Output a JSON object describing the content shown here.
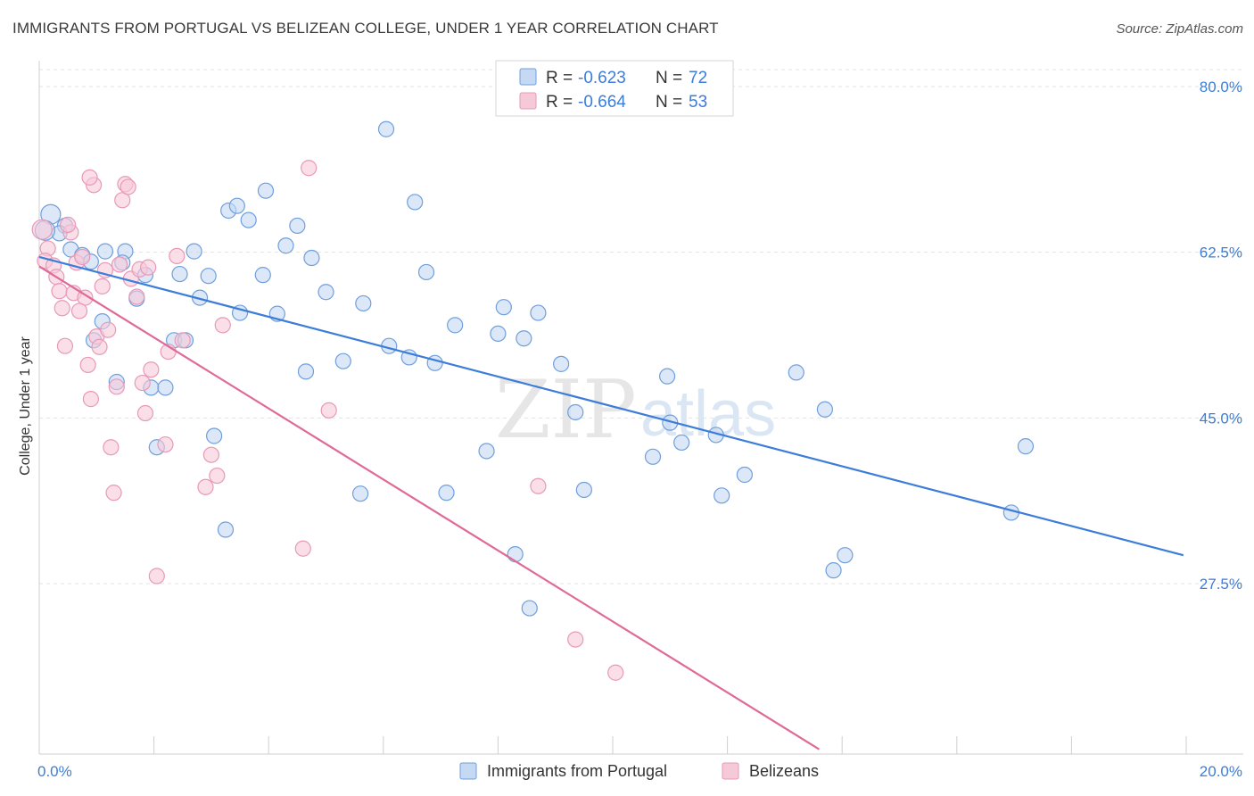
{
  "title": "IMMIGRANTS FROM PORTUGAL VS BELIZEAN COLLEGE, UNDER 1 YEAR CORRELATION CHART",
  "source": "Source: ZipAtlas.com",
  "watermark": {
    "zip": "ZIP",
    "atlas": "atlas"
  },
  "colors": {
    "blue": "#3b7dd8",
    "blue_fill": "#c5d9f3",
    "blue_stroke": "#6f9fdc",
    "pink": "#e06a97",
    "pink_fill": "#f6c9d9",
    "pink_stroke": "#e899b7",
    "grid": "#e3e3e3"
  },
  "legend": {
    "rows": [
      {
        "r_label": "R = ",
        "r_value": "-0.623",
        "n_label": "N = ",
        "n_value": "72",
        "series": "blue"
      },
      {
        "r_label": "R = ",
        "r_value": "-0.664",
        "n_label": "N = ",
        "n_value": "53",
        "series": "pink"
      }
    ]
  },
  "chart_data": {
    "type": "scatter",
    "title": "IMMIGRANTS FROM PORTUGAL VS BELIZEAN COLLEGE, UNDER 1 YEAR CORRELATION CHART",
    "xlabel": "",
    "ylabel": "College, Under 1 year",
    "xlim": [
      0,
      20
    ],
    "ylim": [
      10,
      82
    ],
    "x_tick_labels": [
      "0.0%",
      "20.0%"
    ],
    "y_ticks": [
      27.5,
      45.0,
      62.5,
      80.0
    ],
    "y_tick_labels": [
      "27.5%",
      "45.0%",
      "62.5%",
      "80.0%"
    ],
    "grid": true,
    "legend_position": "top-center",
    "series": [
      {
        "name": "Immigrants from Portugal",
        "color": "blue",
        "trend": {
          "x": [
            0.0,
            19.95
          ],
          "y": [
            62.0,
            30.5
          ]
        },
        "points": [
          {
            "x": 0.2,
            "y": 66.5
          },
          {
            "x": 0.45,
            "y": 65.3
          },
          {
            "x": 0.35,
            "y": 64.5
          },
          {
            "x": 0.55,
            "y": 62.8
          },
          {
            "x": 0.75,
            "y": 62.2
          },
          {
            "x": 0.9,
            "y": 61.5
          },
          {
            "x": 1.15,
            "y": 62.6
          },
          {
            "x": 1.5,
            "y": 62.6
          },
          {
            "x": 1.45,
            "y": 61.4
          },
          {
            "x": 1.85,
            "y": 60.1
          },
          {
            "x": 1.7,
            "y": 57.6
          },
          {
            "x": 1.1,
            "y": 55.2
          },
          {
            "x": 0.95,
            "y": 53.2
          },
          {
            "x": 1.35,
            "y": 48.8
          },
          {
            "x": 1.95,
            "y": 48.2
          },
          {
            "x": 2.2,
            "y": 48.2
          },
          {
            "x": 2.05,
            "y": 41.9
          },
          {
            "x": 2.35,
            "y": 53.2
          },
          {
            "x": 2.55,
            "y": 53.2
          },
          {
            "x": 2.45,
            "y": 60.2
          },
          {
            "x": 2.7,
            "y": 62.6
          },
          {
            "x": 2.8,
            "y": 57.7
          },
          {
            "x": 2.95,
            "y": 60.0
          },
          {
            "x": 3.05,
            "y": 43.1
          },
          {
            "x": 3.3,
            "y": 66.9
          },
          {
            "x": 3.45,
            "y": 67.4
          },
          {
            "x": 3.65,
            "y": 65.9
          },
          {
            "x": 3.5,
            "y": 56.1
          },
          {
            "x": 3.25,
            "y": 33.2
          },
          {
            "x": 3.9,
            "y": 60.1
          },
          {
            "x": 3.95,
            "y": 69.0
          },
          {
            "x": 4.15,
            "y": 56.0
          },
          {
            "x": 4.3,
            "y": 63.2
          },
          {
            "x": 4.5,
            "y": 65.3
          },
          {
            "x": 4.65,
            "y": 49.9
          },
          {
            "x": 4.75,
            "y": 61.9
          },
          {
            "x": 5.0,
            "y": 58.3
          },
          {
            "x": 5.3,
            "y": 51.0
          },
          {
            "x": 5.6,
            "y": 37.0
          },
          {
            "x": 5.65,
            "y": 57.1
          },
          {
            "x": 6.1,
            "y": 52.6
          },
          {
            "x": 6.05,
            "y": 75.5
          },
          {
            "x": 6.45,
            "y": 51.4
          },
          {
            "x": 6.55,
            "y": 67.8
          },
          {
            "x": 6.75,
            "y": 60.4
          },
          {
            "x": 6.9,
            "y": 50.8
          },
          {
            "x": 7.1,
            "y": 37.1
          },
          {
            "x": 7.25,
            "y": 54.8
          },
          {
            "x": 7.8,
            "y": 41.5
          },
          {
            "x": 8.0,
            "y": 53.9
          },
          {
            "x": 8.1,
            "y": 56.7
          },
          {
            "x": 8.3,
            "y": 30.6
          },
          {
            "x": 8.45,
            "y": 53.4
          },
          {
            "x": 8.55,
            "y": 24.9
          },
          {
            "x": 8.7,
            "y": 56.1
          },
          {
            "x": 9.1,
            "y": 50.7
          },
          {
            "x": 9.35,
            "y": 45.6
          },
          {
            "x": 9.5,
            "y": 37.4
          },
          {
            "x": 10.7,
            "y": 40.9
          },
          {
            "x": 10.95,
            "y": 49.4
          },
          {
            "x": 11.0,
            "y": 44.5
          },
          {
            "x": 11.2,
            "y": 42.4
          },
          {
            "x": 11.8,
            "y": 43.2
          },
          {
            "x": 11.9,
            "y": 36.8
          },
          {
            "x": 12.3,
            "y": 39.0
          },
          {
            "x": 13.2,
            "y": 49.8
          },
          {
            "x": 13.85,
            "y": 28.9
          },
          {
            "x": 14.05,
            "y": 30.5
          },
          {
            "x": 13.7,
            "y": 45.9
          },
          {
            "x": 16.95,
            "y": 35.0
          },
          {
            "x": 17.2,
            "y": 42.0
          },
          {
            "x": 0.1,
            "y": 64.8
          }
        ]
      },
      {
        "name": "Belizeans",
        "color": "pink",
        "trend": {
          "x": [
            0.0,
            13.6
          ],
          "y": [
            61.0,
            10.0
          ]
        },
        "points": [
          {
            "x": 0.05,
            "y": 64.9
          },
          {
            "x": 0.15,
            "y": 62.9
          },
          {
            "x": 0.1,
            "y": 61.6
          },
          {
            "x": 0.25,
            "y": 61.1
          },
          {
            "x": 0.3,
            "y": 59.9
          },
          {
            "x": 0.35,
            "y": 58.4
          },
          {
            "x": 0.4,
            "y": 56.6
          },
          {
            "x": 0.45,
            "y": 52.6
          },
          {
            "x": 0.55,
            "y": 64.6
          },
          {
            "x": 0.5,
            "y": 65.4
          },
          {
            "x": 0.6,
            "y": 58.2
          },
          {
            "x": 0.65,
            "y": 61.4
          },
          {
            "x": 0.75,
            "y": 62.0
          },
          {
            "x": 0.8,
            "y": 57.7
          },
          {
            "x": 0.7,
            "y": 56.3
          },
          {
            "x": 0.85,
            "y": 50.6
          },
          {
            "x": 0.9,
            "y": 47.0
          },
          {
            "x": 0.95,
            "y": 69.6
          },
          {
            "x": 0.88,
            "y": 70.4
          },
          {
            "x": 1.0,
            "y": 53.6
          },
          {
            "x": 1.05,
            "y": 52.5
          },
          {
            "x": 1.1,
            "y": 58.9
          },
          {
            "x": 1.15,
            "y": 60.6
          },
          {
            "x": 1.2,
            "y": 54.3
          },
          {
            "x": 1.25,
            "y": 41.9
          },
          {
            "x": 1.3,
            "y": 37.1
          },
          {
            "x": 1.35,
            "y": 48.3
          },
          {
            "x": 1.4,
            "y": 61.2
          },
          {
            "x": 1.45,
            "y": 68.0
          },
          {
            "x": 1.5,
            "y": 69.7
          },
          {
            "x": 1.55,
            "y": 69.4
          },
          {
            "x": 1.6,
            "y": 59.7
          },
          {
            "x": 1.7,
            "y": 57.8
          },
          {
            "x": 1.75,
            "y": 60.7
          },
          {
            "x": 1.8,
            "y": 48.7
          },
          {
            "x": 1.85,
            "y": 45.5
          },
          {
            "x": 1.9,
            "y": 60.9
          },
          {
            "x": 1.95,
            "y": 50.1
          },
          {
            "x": 2.05,
            "y": 28.3
          },
          {
            "x": 2.2,
            "y": 42.2
          },
          {
            "x": 2.25,
            "y": 52.0
          },
          {
            "x": 2.4,
            "y": 62.1
          },
          {
            "x": 2.5,
            "y": 53.2
          },
          {
            "x": 2.9,
            "y": 37.7
          },
          {
            "x": 3.0,
            "y": 41.1
          },
          {
            "x": 3.1,
            "y": 38.9
          },
          {
            "x": 3.2,
            "y": 54.8
          },
          {
            "x": 4.6,
            "y": 31.2
          },
          {
            "x": 4.7,
            "y": 71.4
          },
          {
            "x": 5.05,
            "y": 45.8
          },
          {
            "x": 8.7,
            "y": 37.8
          },
          {
            "x": 9.35,
            "y": 21.6
          },
          {
            "x": 10.05,
            "y": 18.1
          }
        ]
      }
    ]
  },
  "bottom_legend": [
    {
      "label": "Immigrants from Portugal",
      "series": "blue"
    },
    {
      "label": "Belizeans",
      "series": "pink"
    }
  ]
}
